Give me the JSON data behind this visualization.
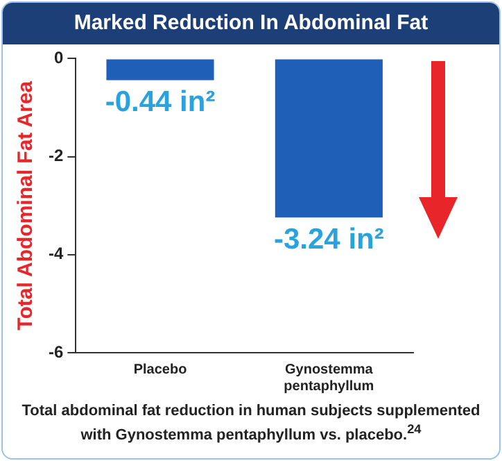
{
  "chart_data": {
    "type": "bar",
    "title": "Marked Reduction In Abdominal Fat",
    "ylabel": "Total Abdominal Fat Area",
    "categories": [
      "Placebo",
      "Gynostemma pentaphyllum"
    ],
    "values": [
      -0.44,
      -3.24
    ],
    "color": "#1f5fb8",
    "value_labels": [
      "-0.44 in²",
      "-3.24 in²"
    ],
    "ylim": [
      -6,
      0
    ],
    "yticks": [
      0,
      -2,
      -4,
      -6
    ],
    "grid": false,
    "legend": false,
    "annotations": [
      "Total abdominal fat reduction in human subjects supplemented with Gynostemma pentaphyllum vs. placebo.$^{24}$"
    ]
  }
}
